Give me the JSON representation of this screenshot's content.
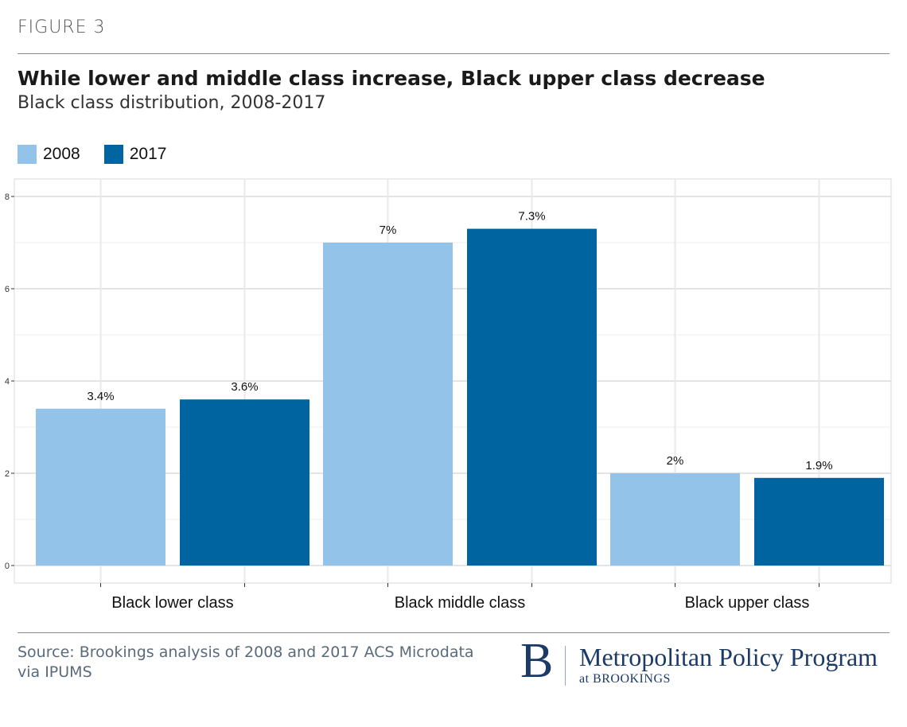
{
  "header": {
    "figure_label": "FIGURE 3",
    "title": "While lower and middle class increase, Black upper class decrease",
    "subtitle": "Black class distribution, 2008-2017"
  },
  "chart_data": {
    "type": "bar",
    "categories": [
      "Black lower class",
      "Black middle class",
      "Black upper class"
    ],
    "series": [
      {
        "name": "2008",
        "color": "#93c3e8",
        "values": [
          3.4,
          7.0,
          2.0
        ],
        "labels": [
          "3.4%",
          "7%",
          "2%"
        ]
      },
      {
        "name": "2017",
        "color": "#0064a0",
        "values": [
          3.6,
          7.3,
          1.9
        ],
        "labels": [
          "3.6%",
          "7.3%",
          "1.9%"
        ]
      }
    ],
    "ylim": [
      0,
      8.2
    ],
    "yticks": [
      0,
      2,
      4,
      6,
      8
    ],
    "grid": true,
    "legend": "top-left",
    "xlabel": "",
    "ylabel": ""
  },
  "footer": {
    "source": "Source: Brookings analysis of 2008 and 2017 ACS Microdata via IPUMS",
    "logo_letter": "B",
    "logo_main": "Metropolitan Policy Program",
    "logo_sub": "at BROOKINGS"
  }
}
